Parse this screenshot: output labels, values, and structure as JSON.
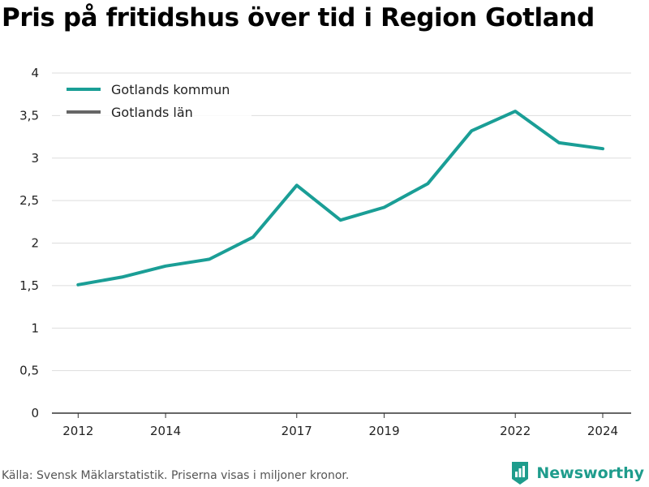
{
  "title": "Pris på fritidshus över tid i Region Gotland",
  "source_note": "Källa: Svensk Mäklarstatistik. Priserna visas i miljoner kronor.",
  "brand": {
    "name": "Newsworthy",
    "icon": "newsworthy-logo-icon",
    "color": "#1e9c8c"
  },
  "colors": {
    "series_kommun": "#1a9e96",
    "series_lan": "#666666",
    "grid": "#dddddd",
    "axis": "#333333"
  },
  "chart_data": {
    "type": "line",
    "title": "Pris på fritidshus över tid i Region Gotland",
    "xlabel": "",
    "ylabel": "",
    "xlim": [
      2011.4,
      2024.65
    ],
    "ylim": [
      0,
      4
    ],
    "grid": true,
    "legend_position": "top-left",
    "x_ticks": [
      2012,
      2014,
      2017,
      2019,
      2022,
      2024
    ],
    "y_ticks": [
      {
        "value": 0,
        "label": "0"
      },
      {
        "value": 0.5,
        "label": "0,5"
      },
      {
        "value": 1,
        "label": "1"
      },
      {
        "value": 1.5,
        "label": "1,5"
      },
      {
        "value": 2,
        "label": "2"
      },
      {
        "value": 2.5,
        "label": "2,5"
      },
      {
        "value": 3,
        "label": "3"
      },
      {
        "value": 3.5,
        "label": "3,5"
      },
      {
        "value": 4,
        "label": "4"
      }
    ],
    "series": [
      {
        "name": "Gotlands kommun",
        "color": "#1a9e96",
        "x": [
          2012,
          2013,
          2014,
          2015,
          2016,
          2017,
          2018,
          2019,
          2020,
          2021,
          2022,
          2023,
          2024
        ],
        "y": [
          1.51,
          1.6,
          1.73,
          1.81,
          2.07,
          2.68,
          2.27,
          2.42,
          2.7,
          3.32,
          3.55,
          3.18,
          3.11
        ]
      },
      {
        "name": "Gotlands län",
        "color": "#666666",
        "x": [],
        "y": []
      }
    ]
  }
}
